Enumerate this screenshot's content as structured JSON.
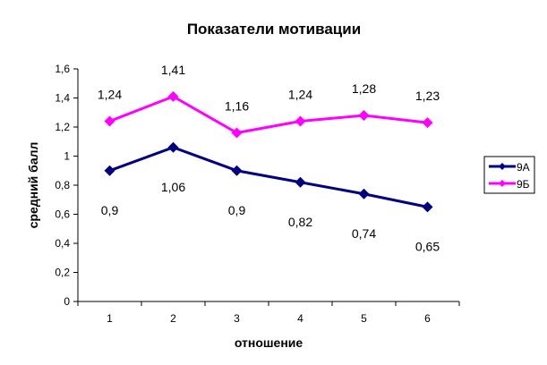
{
  "chart_data": {
    "type": "line",
    "title": "Показатели мотивации",
    "xlabel": "отношение",
    "ylabel": "средний балл",
    "categories": [
      "1",
      "2",
      "3",
      "4",
      "5",
      "6"
    ],
    "ylim": [
      0,
      1.6
    ],
    "yticks": [
      0,
      0.2,
      0.4,
      0.6,
      0.8,
      1,
      1.2,
      1.4,
      1.6
    ],
    "ytick_labels": [
      "0",
      "0,2",
      "0,4",
      "0,6",
      "0,8",
      "1",
      "1,2",
      "1,4",
      "1,6"
    ],
    "grid": false,
    "legend_position": "right",
    "series": [
      {
        "name": "9А",
        "color": "#000080",
        "values": [
          0.9,
          1.06,
          0.9,
          0.82,
          0.74,
          0.65
        ],
        "labels": [
          "0,9",
          "1,06",
          "0,9",
          "0,82",
          "0,74",
          "0,65"
        ],
        "label_position": "below"
      },
      {
        "name": "9Б",
        "color": "#FF00FF",
        "values": [
          1.24,
          1.41,
          1.16,
          1.24,
          1.28,
          1.23
        ],
        "labels": [
          "1,24",
          "1,41",
          "1,16",
          "1,24",
          "1,28",
          "1,23"
        ],
        "label_position": "above"
      }
    ]
  }
}
